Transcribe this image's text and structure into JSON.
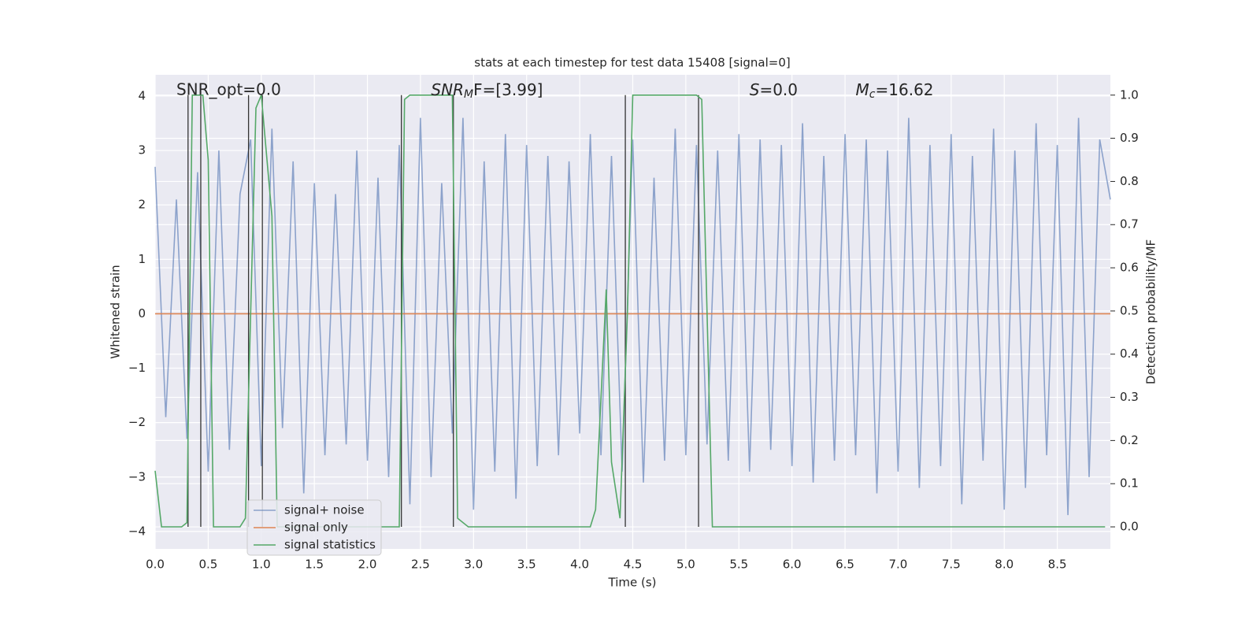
{
  "chart_data": {
    "type": "line",
    "title": "stats at each timestep for test data 15408 [signal=0]",
    "xlabel": "Time (s)",
    "ylabel": "Whitened strain",
    "y2label": "Detection probability/MF",
    "annotations": [
      {
        "text": "SNR_opt=0.0",
        "x": 0.2
      },
      {
        "base": "SNR",
        "sub": "M",
        "rest": "F=[3.99]",
        "x": 2.6
      },
      {
        "base": "S",
        "rest": "=0.0",
        "x": 5.6
      },
      {
        "base": "M",
        "sub": "c",
        "rest": "=16.62",
        "x": 6.6
      }
    ],
    "xlim": [
      0,
      9.0
    ],
    "ylim": [
      -4.32,
      4.39
    ],
    "y2lim": [
      -0.051,
      1.047
    ],
    "xticks": [
      {
        "value": 0,
        "label": "0.0"
      },
      {
        "value": 0.5,
        "label": "0.5"
      },
      {
        "value": 1,
        "label": "1.0"
      },
      {
        "value": 1.5,
        "label": "1.5"
      },
      {
        "value": 2,
        "label": "2.0"
      },
      {
        "value": 2.5,
        "label": "2.5"
      },
      {
        "value": 3,
        "label": "3.0"
      },
      {
        "value": 3.5,
        "label": "3.5"
      },
      {
        "value": 4,
        "label": "4.0"
      },
      {
        "value": 4.5,
        "label": "4.5"
      },
      {
        "value": 5,
        "label": "5.0"
      },
      {
        "value": 5.5,
        "label": "5.5"
      },
      {
        "value": 6,
        "label": "6.0"
      },
      {
        "value": 6.5,
        "label": "6.5"
      },
      {
        "value": 7,
        "label": "7.0"
      },
      {
        "value": 7.5,
        "label": "7.5"
      },
      {
        "value": 8,
        "label": "8.0"
      },
      {
        "value": 8.5,
        "label": "8.5"
      }
    ],
    "yticks": [
      {
        "value": -4,
        "label": "−4"
      },
      {
        "value": -3,
        "label": "−3"
      },
      {
        "value": -2,
        "label": "−2"
      },
      {
        "value": -1,
        "label": "−1"
      },
      0,
      1,
      2,
      3,
      4
    ],
    "y2ticks": [
      {
        "value": 0,
        "label": "0.0"
      },
      {
        "value": 0.1,
        "label": "0.1"
      },
      {
        "value": 0.2,
        "label": "0.2"
      },
      {
        "value": 0.3,
        "label": "0.3"
      },
      {
        "value": 0.4,
        "label": "0.4"
      },
      {
        "value": 0.5,
        "label": "0.5"
      },
      {
        "value": 0.6,
        "label": "0.6"
      },
      {
        "value": 0.7,
        "label": "0.7"
      },
      {
        "value": 0.8,
        "label": "0.8"
      },
      {
        "value": 0.9,
        "label": "0.9"
      },
      {
        "value": 1,
        "label": "1.0"
      }
    ],
    "grid": true,
    "legend": "lower left",
    "series": [
      {
        "name": "signal+ noise",
        "color": "#4c72b0",
        "x": [
          0,
          0.1,
          0.2,
          0.3,
          0.4,
          0.5,
          0.6,
          0.7,
          0.8,
          0.9,
          1,
          1.1,
          1.2,
          1.3,
          1.4,
          1.5,
          1.6,
          1.7,
          1.8,
          1.9,
          2,
          2.1,
          2.2,
          2.3,
          2.4,
          2.5,
          2.6,
          2.7,
          2.8,
          2.9,
          3,
          3.1,
          3.2,
          3.3,
          3.4,
          3.5,
          3.6,
          3.7,
          3.8,
          3.9,
          4,
          4.1,
          4.2,
          4.3,
          4.4,
          4.5,
          4.6,
          4.7,
          4.8,
          4.9,
          5,
          5.1,
          5.2,
          5.3,
          5.4,
          5.5,
          5.6,
          5.7,
          5.8,
          5.9,
          6,
          6.1,
          6.2,
          6.3,
          6.4,
          6.5,
          6.6,
          6.7,
          6.8,
          6.9,
          7,
          7.1,
          7.2,
          7.3,
          7.4,
          7.5,
          7.6,
          7.7,
          7.8,
          7.9,
          8,
          8.1,
          8.2,
          8.3,
          8.4,
          8.5,
          8.6,
          8.7,
          8.8,
          8.9,
          9
        ],
        "values": [
          2.7,
          -1.9,
          2.1,
          -2.3,
          2.6,
          -2.9,
          3.0,
          -2.5,
          2.2,
          3.2,
          -2.8,
          3.4,
          -2.1,
          2.8,
          -3.3,
          2.4,
          -2.6,
          2.2,
          -2.4,
          3.0,
          -2.7,
          2.5,
          -3.0,
          3.1,
          -3.5,
          3.6,
          -3.0,
          2.4,
          -2.2,
          3.6,
          -3.6,
          2.8,
          -2.9,
          3.3,
          -3.4,
          3.1,
          -2.8,
          2.9,
          -2.6,
          2.8,
          -2.2,
          3.3,
          -2.6,
          2.9,
          -2.9,
          3.2,
          -3.1,
          2.5,
          -2.7,
          3.4,
          -2.6,
          3.1,
          -2.4,
          3.0,
          -2.7,
          3.3,
          -2.9,
          3.2,
          -2.5,
          3.1,
          -2.8,
          3.5,
          -3.1,
          2.9,
          -2.7,
          3.3,
          -2.6,
          3.2,
          -3.3,
          3.0,
          -2.9,
          3.6,
          -3.2,
          3.1,
          -2.8,
          3.3,
          -3.5,
          2.9,
          -2.7,
          3.4,
          -3.6,
          3.0,
          -3.2,
          3.5,
          -2.6,
          3.1,
          -3.7,
          3.6,
          -3.0,
          3.2,
          2.1
        ]
      },
      {
        "name": "signal only",
        "color": "#dd8452",
        "x": [
          0,
          9
        ],
        "values": [
          0,
          0
        ]
      },
      {
        "name": "signal statistics",
        "color": "#55a868",
        "axis": "y2",
        "x": [
          0,
          0.06,
          0.25,
          0.3,
          0.35,
          0.45,
          0.5,
          0.55,
          0.8,
          0.85,
          0.95,
          1.0,
          1.1,
          1.15,
          2.3,
          2.35,
          2.4,
          2.8,
          2.85,
          2.95,
          4.1,
          4.15,
          4.25,
          4.3,
          4.38,
          4.45,
          4.5,
          5.1,
          5.15,
          5.25,
          8.95
        ],
        "values": [
          0.13,
          0.0,
          0.0,
          0.01,
          1.0,
          1.0,
          0.85,
          0.0,
          0.0,
          0.02,
          0.97,
          1.0,
          0.72,
          0.0,
          0.0,
          0.99,
          1.0,
          1.0,
          0.02,
          0.0,
          0.0,
          0.04,
          0.55,
          0.15,
          0.02,
          0.5,
          1.0,
          1.0,
          0.99,
          0.0,
          0.0
        ]
      }
    ],
    "vlines": {
      "color": "#333333",
      "x": [
        0.31,
        0.43,
        0.88,
        1.01,
        2.32,
        2.81,
        4.43,
        5.12
      ],
      "span": [
        0,
        1
      ]
    }
  }
}
